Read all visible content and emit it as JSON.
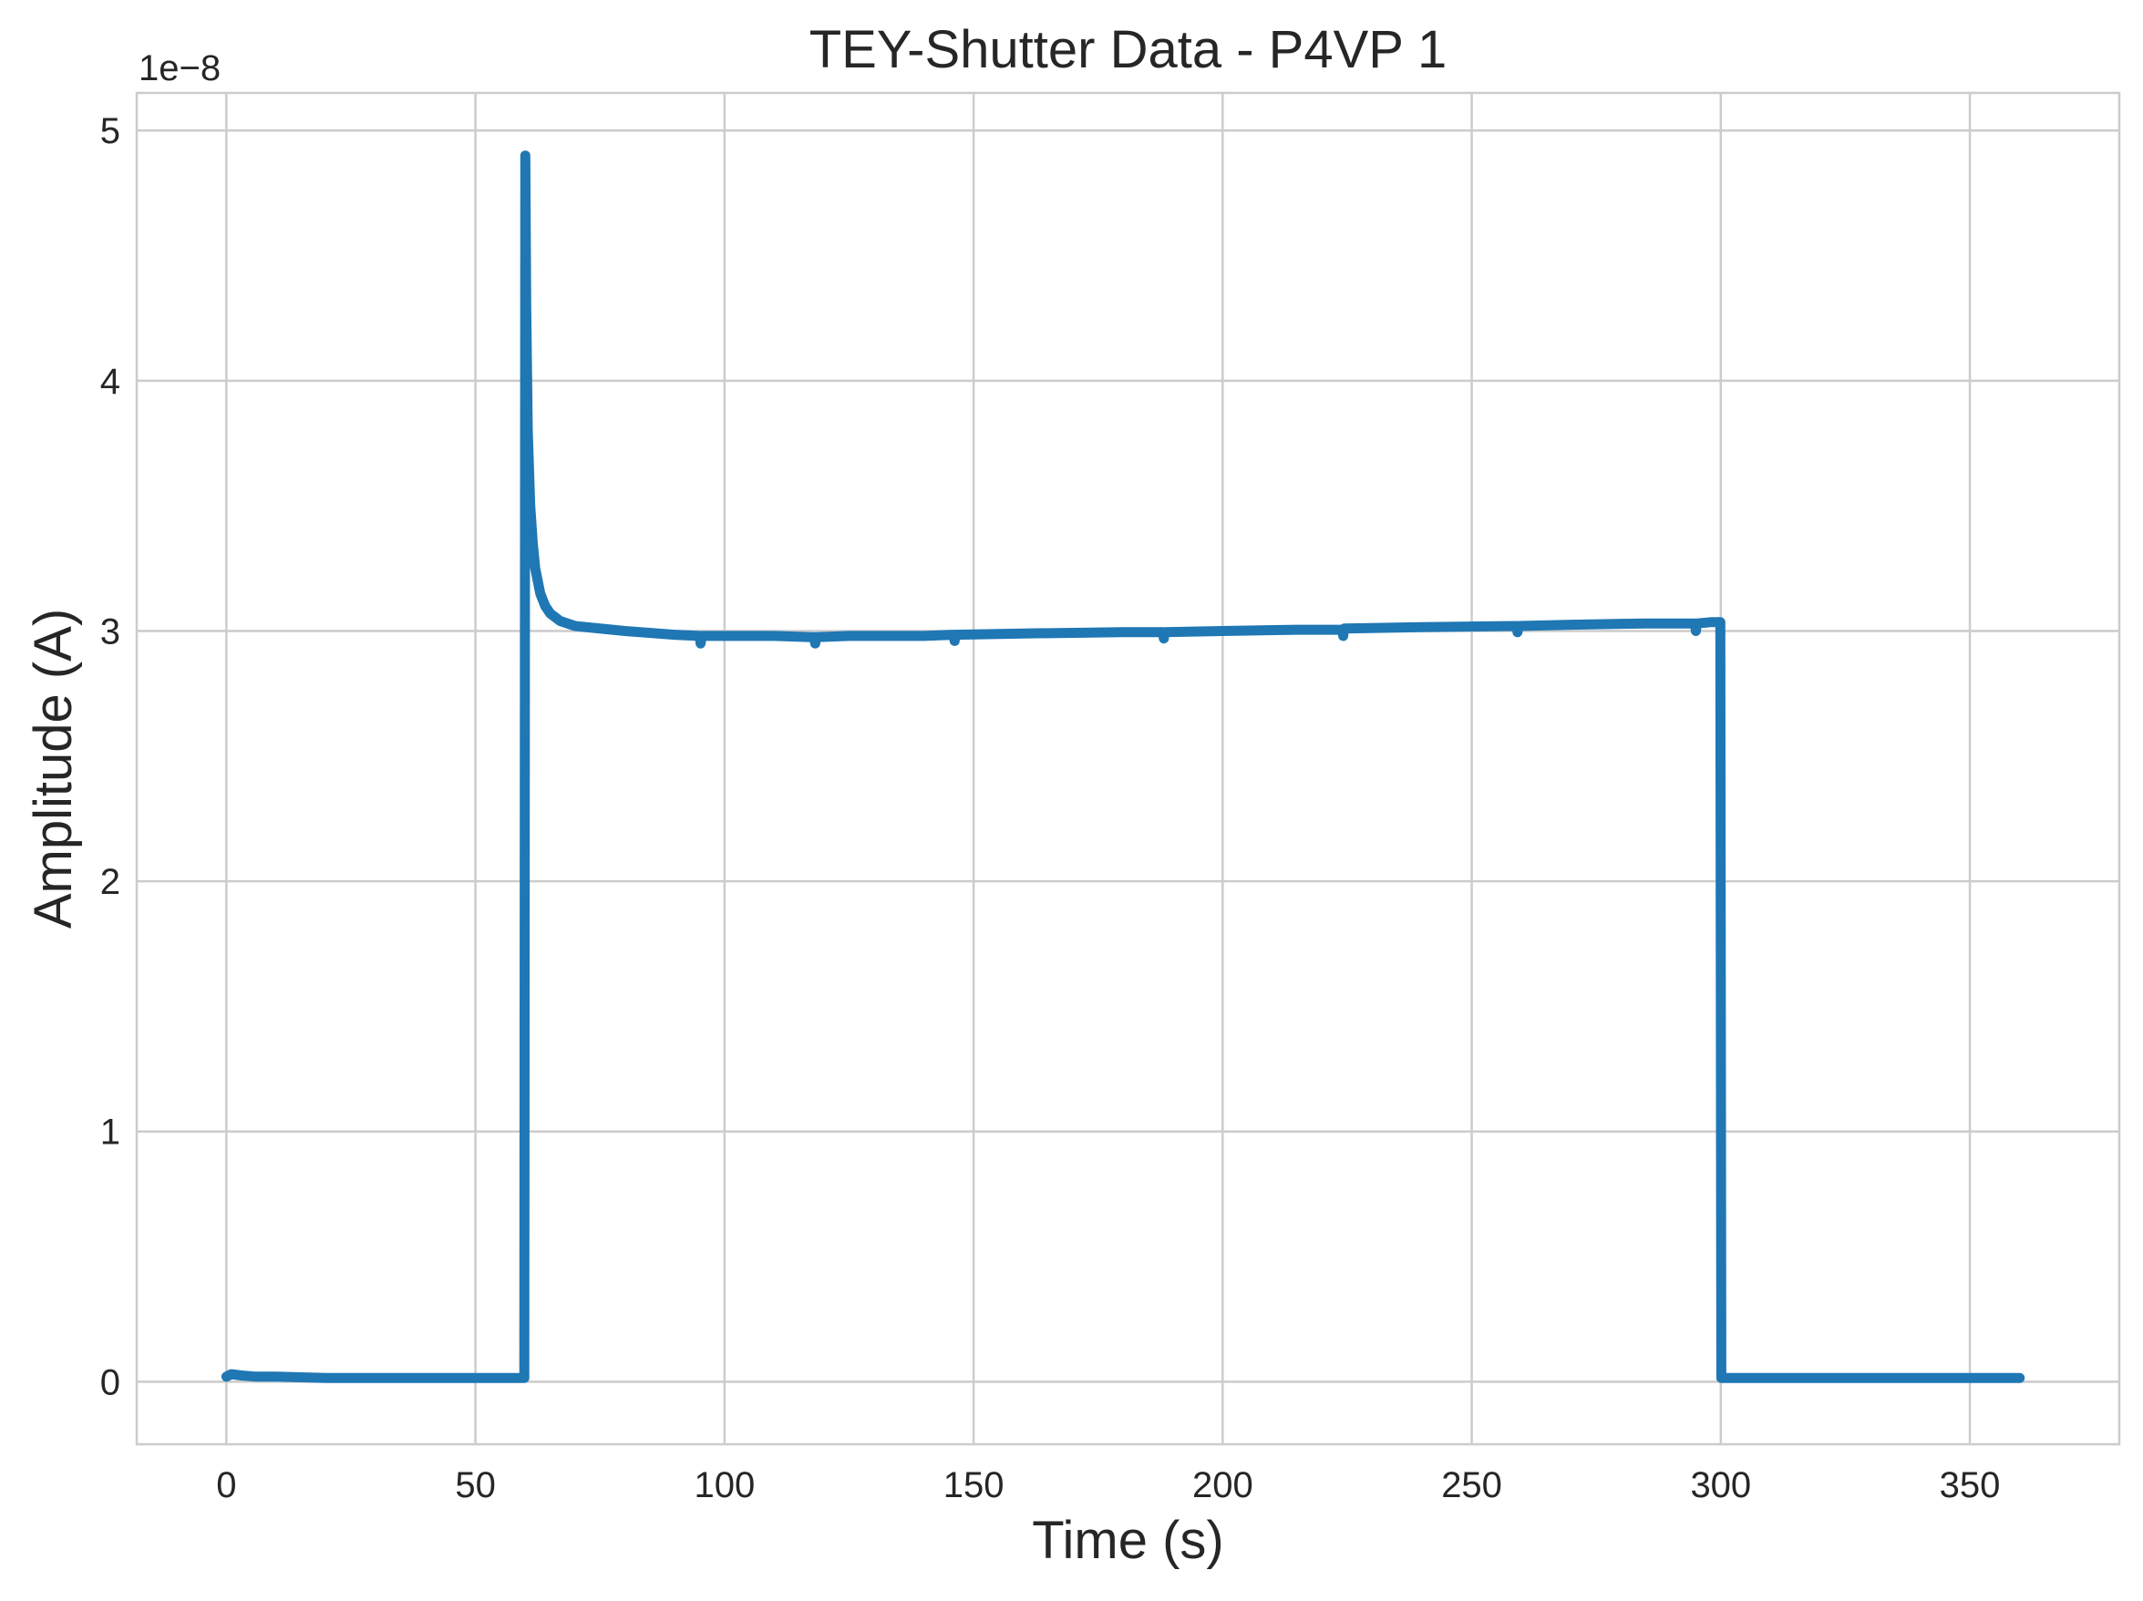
{
  "chart_data": {
    "type": "line",
    "title": "TEY-Shutter Data - P4VP 1",
    "xlabel": "Time (s)",
    "ylabel": "Amplitude (A)",
    "y_offset_label": "1e−8",
    "xlim": [
      -18,
      380
    ],
    "ylim": [
      -0.25,
      5.15
    ],
    "x_ticks": [
      0,
      50,
      100,
      150,
      200,
      250,
      300,
      350
    ],
    "x_tick_labels": [
      "0",
      "50",
      "100",
      "150",
      "200",
      "250",
      "300",
      "350"
    ],
    "y_ticks": [
      0,
      1,
      2,
      3,
      4,
      5
    ],
    "y_tick_labels": [
      "0",
      "1",
      "2",
      "3",
      "4",
      "5"
    ],
    "grid": true,
    "legend": "none",
    "line_color": "#1f77b4",
    "series": [
      {
        "x": [
          0,
          1,
          3,
          6,
          10,
          20,
          40,
          59.8,
          60.0,
          60.2,
          60.5,
          61,
          61.5,
          62,
          63,
          64,
          65,
          67,
          70,
          80,
          90,
          95,
          95.2,
          95.4,
          100,
          110,
          118,
          118.2,
          118.4,
          125,
          140,
          146,
          146.2,
          146.4,
          160,
          180,
          188,
          188.2,
          188.4,
          200,
          215,
          224,
          224.2,
          224.4,
          240,
          259,
          259.2,
          259.4,
          270,
          285,
          294,
          294.8,
          295,
          295.2,
          298,
          299.9,
          300.1,
          305,
          320,
          340,
          360
        ],
        "y": [
          0.02,
          0.03,
          0.025,
          0.02,
          0.02,
          0.015,
          0.015,
          0.015,
          4.9,
          4.3,
          3.8,
          3.5,
          3.35,
          3.25,
          3.15,
          3.1,
          3.07,
          3.04,
          3.02,
          3.0,
          2.985,
          2.98,
          2.95,
          2.98,
          2.98,
          2.98,
          2.975,
          2.95,
          2.975,
          2.98,
          2.98,
          2.985,
          2.96,
          2.985,
          2.99,
          2.995,
          2.995,
          2.97,
          2.995,
          3.0,
          3.005,
          3.005,
          2.98,
          3.01,
          3.015,
          3.02,
          2.995,
          3.02,
          3.025,
          3.03,
          3.03,
          3.03,
          3.0,
          3.03,
          3.035,
          3.035,
          0.015,
          0.015,
          0.015,
          0.015,
          0.015
        ]
      }
    ]
  }
}
